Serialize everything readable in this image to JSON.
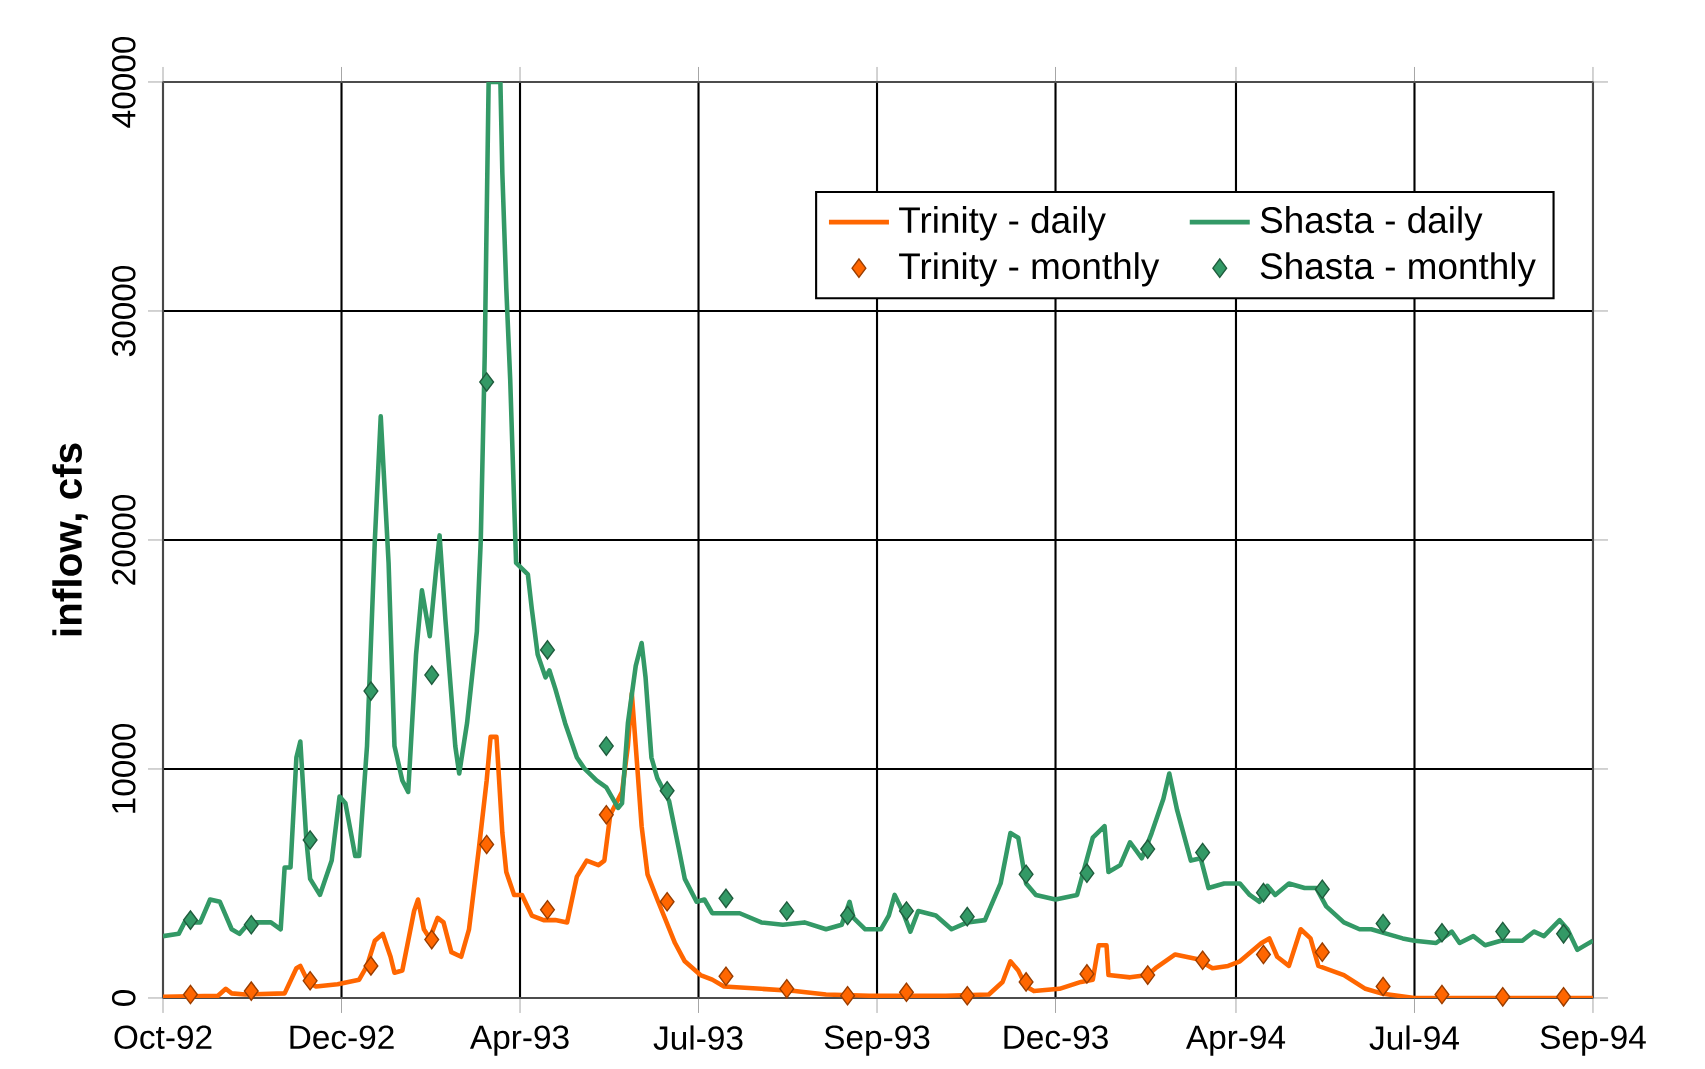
{
  "chart_data": {
    "type": "line",
    "ylabel": "inflow, cfs",
    "xlim": [
      "1992-10-01",
      "1994-09-30"
    ],
    "ylim": [
      0,
      40000
    ],
    "xticks": [
      {
        "value": "1992-10-01",
        "label": "Oct-92"
      },
      {
        "value": "1992-12-31",
        "label": "Dec-92"
      },
      {
        "value": "1993-04-01",
        "label": "Apr-93"
      },
      {
        "value": "1993-07-01",
        "label": "Jul-93"
      },
      {
        "value": "1993-09-30",
        "label": "Sep-93"
      },
      {
        "value": "1993-12-30",
        "label": "Dec-93"
      },
      {
        "value": "1994-04-01",
        "label": "Apr-94"
      },
      {
        "value": "1994-07-01",
        "label": "Jul-94"
      },
      {
        "value": "1994-09-30",
        "label": "Sep-94"
      }
    ],
    "yticks": [
      0,
      10000,
      20000,
      30000,
      40000
    ],
    "grid": true,
    "legend": "top right",
    "series": [
      {
        "name": "Trinity - daily",
        "color": "#ff6600",
        "x": [
          "1992-10-01",
          "1992-10-29",
          "1992-11-02",
          "1992-11-05",
          "1992-11-12",
          "1992-12-02",
          "1992-12-08",
          "1992-12-10",
          "1992-12-14",
          "1992-12-18",
          "1992-12-29",
          "1993-01-09",
          "1993-01-13",
          "1993-01-17",
          "1993-01-21",
          "1993-01-25",
          "1993-01-27",
          "1993-01-31",
          "1993-02-06",
          "1993-02-08",
          "1993-02-11",
          "1993-02-14",
          "1993-02-18",
          "1993-02-21",
          "1993-02-25",
          "1993-03-02",
          "1993-03-06",
          "1993-03-11",
          "1993-03-15",
          "1993-03-17",
          "1993-03-20",
          "1993-03-23",
          "1993-03-25",
          "1993-03-29",
          "1993-04-02",
          "1993-04-07",
          "1993-04-13",
          "1993-04-19",
          "1993-04-25",
          "1993-04-30",
          "1993-05-05",
          "1993-05-11",
          "1993-05-14",
          "1993-05-17",
          "1993-05-23",
          "1993-05-26",
          "1993-05-28",
          "1993-05-30",
          "1993-06-02",
          "1993-06-05",
          "1993-06-10",
          "1993-06-19",
          "1993-06-24",
          "1993-07-02",
          "1993-07-08",
          "1993-07-14",
          "1993-08-02",
          "1993-08-19",
          "1993-09-04",
          "1993-09-26",
          "1993-11-04",
          "1993-11-26",
          "1993-12-03",
          "1993-12-07",
          "1993-12-11",
          "1993-12-15",
          "1993-12-19",
          "1994-01-01",
          "1994-01-12",
          "1994-01-18",
          "1994-01-21",
          "1994-01-25",
          "1994-01-26",
          "1994-02-06",
          "1994-02-15",
          "1994-02-19",
          "1994-03-01",
          "1994-03-12",
          "1994-03-20",
          "1994-03-28",
          "1994-04-03",
          "1994-04-14",
          "1994-04-18",
          "1994-04-22",
          "1994-04-28",
          "1994-05-04",
          "1994-05-09",
          "1994-05-13",
          "1994-05-26",
          "1994-06-06",
          "1994-06-14",
          "1994-07-01",
          "1994-09-30"
        ],
        "values": [
          50,
          100,
          400,
          200,
          150,
          200,
          1300,
          1400,
          700,
          500,
          600,
          800,
          1400,
          2500,
          2800,
          1800,
          1100,
          1200,
          3800,
          4300,
          3000,
          2600,
          3500,
          3300,
          2000,
          1800,
          3000,
          6500,
          9500,
          11400,
          11400,
          7200,
          5500,
          4500,
          4500,
          3600,
          3400,
          3400,
          3300,
          5300,
          6000,
          5800,
          6000,
          8000,
          9000,
          11000,
          13300,
          11000,
          7500,
          5400,
          4300,
          2400,
          1600,
          1000,
          800,
          500,
          400,
          300,
          150,
          100,
          100,
          150,
          700,
          1600,
          1200,
          500,
          300,
          400,
          700,
          800,
          2300,
          2300,
          1000,
          900,
          1000,
          1300,
          1900,
          1700,
          1300,
          1400,
          1600,
          2400,
          2600,
          1800,
          1400,
          3000,
          2600,
          1400,
          1000,
          400,
          200,
          0,
          0
        ]
      },
      {
        "name": "Shasta - daily",
        "color": "#339966",
        "x": [
          "1992-10-01",
          "1992-10-09",
          "1992-10-12",
          "1992-10-20",
          "1992-10-25",
          "1992-10-30",
          "1992-11-05",
          "1992-11-09",
          "1992-11-14",
          "1992-11-25",
          "1992-11-30",
          "1992-12-02",
          "1992-12-05",
          "1992-12-08",
          "1992-12-10",
          "1992-12-13",
          "1992-12-15",
          "1992-12-20",
          "1992-12-26",
          "1992-12-30",
          "1993-01-02",
          "1993-01-07",
          "1993-01-09",
          "1993-01-13",
          "1993-01-17",
          "1993-01-20",
          "1993-01-24",
          "1993-01-27",
          "1993-01-31",
          "1993-02-03",
          "1993-02-07",
          "1993-02-10",
          "1993-02-12",
          "1993-02-14",
          "1993-02-17",
          "1993-02-19",
          "1993-02-22",
          "1993-02-27",
          "1993-03-01",
          "1993-03-05",
          "1993-03-10",
          "1993-03-12",
          "1993-03-14",
          "1993-03-16",
          "1993-03-22",
          "1993-03-23",
          "1993-03-25",
          "1993-03-27",
          "1993-03-30",
          "1993-04-05",
          "1993-04-07",
          "1993-04-10",
          "1993-04-14",
          "1993-04-16",
          "1993-04-19",
          "1993-04-24",
          "1993-04-30",
          "1993-05-04",
          "1993-05-10",
          "1993-05-15",
          "1993-05-21",
          "1993-05-23",
          "1993-05-26",
          "1993-05-30",
          "1993-06-02",
          "1993-06-04",
          "1993-06-07",
          "1993-06-10",
          "1993-06-16",
          "1993-06-21",
          "1993-06-24",
          "1993-06-30",
          "1993-07-04",
          "1993-07-08",
          "1993-07-22",
          "1993-08-02",
          "1993-08-13",
          "1993-08-24",
          "1993-09-04",
          "1993-09-12",
          "1993-09-16",
          "1993-09-18",
          "1993-09-24",
          "1993-10-02",
          "1993-10-06",
          "1993-10-09",
          "1993-10-13",
          "1993-10-17",
          "1993-10-21",
          "1993-10-30",
          "1993-11-07",
          "1993-11-15",
          "1993-11-24",
          "1993-12-02",
          "1993-12-07",
          "1993-12-11",
          "1993-12-15",
          "1993-12-20",
          "1993-12-30",
          "1994-01-10",
          "1994-01-18",
          "1994-01-24",
          "1994-01-26",
          "1994-02-01",
          "1994-02-06",
          "1994-02-12",
          "1994-02-17",
          "1994-02-23",
          "1994-02-26",
          "1994-03-02",
          "1994-03-09",
          "1994-03-14",
          "1994-03-18",
          "1994-03-26",
          "1994-04-03",
          "1994-04-08",
          "1994-04-13",
          "1994-04-17",
          "1994-04-21",
          "1994-04-28",
          "1994-05-06",
          "1994-05-12",
          "1994-05-17",
          "1994-05-26",
          "1994-06-03",
          "1994-06-09",
          "1994-06-17",
          "1994-06-25",
          "1994-07-01",
          "1994-07-12",
          "1994-07-20",
          "1994-07-24",
          "1994-07-31",
          "1994-08-06",
          "1994-08-14",
          "1994-08-25",
          "1994-08-31",
          "1994-09-05",
          "1994-09-13",
          "1994-09-17",
          "1994-09-22",
          "1994-09-30"
        ],
        "values": [
          2700,
          2800,
          3300,
          3300,
          4300,
          4200,
          3000,
          2800,
          3300,
          3300,
          3000,
          5700,
          5700,
          10500,
          11200,
          7000,
          5200,
          4500,
          6000,
          8800,
          8500,
          6200,
          6200,
          11000,
          20000,
          25400,
          19000,
          11000,
          9500,
          9000,
          15000,
          17800,
          16800,
          15800,
          18500,
          20200,
          16500,
          11000,
          9800,
          12000,
          16000,
          20000,
          28000,
          40000,
          40000,
          36000,
          31000,
          27000,
          19000,
          18500,
          17000,
          15000,
          14000,
          14300,
          13500,
          12000,
          10500,
          10000,
          9500,
          9200,
          8300,
          8500,
          12000,
          14500,
          15500,
          14000,
          10500,
          9600,
          8600,
          6500,
          5200,
          4200,
          4300,
          3700,
          3700,
          3300,
          3200,
          3300,
          3000,
          3200,
          4200,
          3500,
          3000,
          3000,
          3600,
          4500,
          3800,
          2900,
          3800,
          3600,
          3000,
          3300,
          3400,
          5000,
          7200,
          7000,
          5000,
          4500,
          4300,
          4500,
          7000,
          7500,
          5500,
          5800,
          6800,
          6100,
          7200,
          8700,
          9800,
          8200,
          6000,
          6100,
          4800,
          5000,
          5000,
          4500,
          4200,
          4900,
          4500,
          5000,
          4800,
          4800,
          4000,
          3300,
          3000,
          3000,
          2800,
          2600,
          2500,
          2400,
          2900,
          2400,
          2700,
          2300,
          2500,
          2500,
          2900,
          2700,
          3400,
          3000,
          2100,
          2500
        ]
      },
      {
        "name": "Trinity - monthly",
        "type": "scatter",
        "marker": "diamond",
        "color": "#ff6600",
        "x": [
          "1992-10-15",
          "1992-11-15",
          "1992-12-15",
          "1993-01-15",
          "1993-02-15",
          "1993-03-15",
          "1993-04-15",
          "1993-05-15",
          "1993-06-15",
          "1993-07-15",
          "1993-08-15",
          "1993-09-15",
          "1993-10-15",
          "1993-11-15",
          "1993-12-15",
          "1994-01-15",
          "1994-02-15",
          "1994-03-15",
          "1994-04-15",
          "1994-05-15",
          "1994-06-15",
          "1994-07-15",
          "1994-08-15",
          "1994-09-15"
        ],
        "values": [
          150,
          300,
          750,
          1400,
          2550,
          6700,
          3850,
          8000,
          4200,
          950,
          400,
          100,
          250,
          100,
          700,
          1050,
          1000,
          1650,
          1900,
          2000,
          500,
          150,
          50,
          50
        ]
      },
      {
        "name": "Shasta - monthly",
        "type": "scatter",
        "marker": "diamond",
        "color": "#339966",
        "x": [
          "1992-10-15",
          "1992-11-15",
          "1992-12-15",
          "1993-01-15",
          "1993-02-15",
          "1993-03-15",
          "1993-04-15",
          "1993-05-15",
          "1993-06-15",
          "1993-07-15",
          "1993-08-15",
          "1993-09-15",
          "1993-10-15",
          "1993-11-15",
          "1993-12-15",
          "1994-01-15",
          "1994-02-15",
          "1994-03-15",
          "1994-04-15",
          "1994-05-15",
          "1994-06-15",
          "1994-07-15",
          "1994-08-15",
          "1994-09-15"
        ],
        "values": [
          3400,
          3200,
          6900,
          13400,
          14100,
          26900,
          15200,
          11000,
          9050,
          4350,
          3800,
          3600,
          3800,
          3550,
          5400,
          5450,
          6500,
          6350,
          4600,
          4750,
          3250,
          2850,
          2900,
          2800
        ]
      }
    ]
  }
}
